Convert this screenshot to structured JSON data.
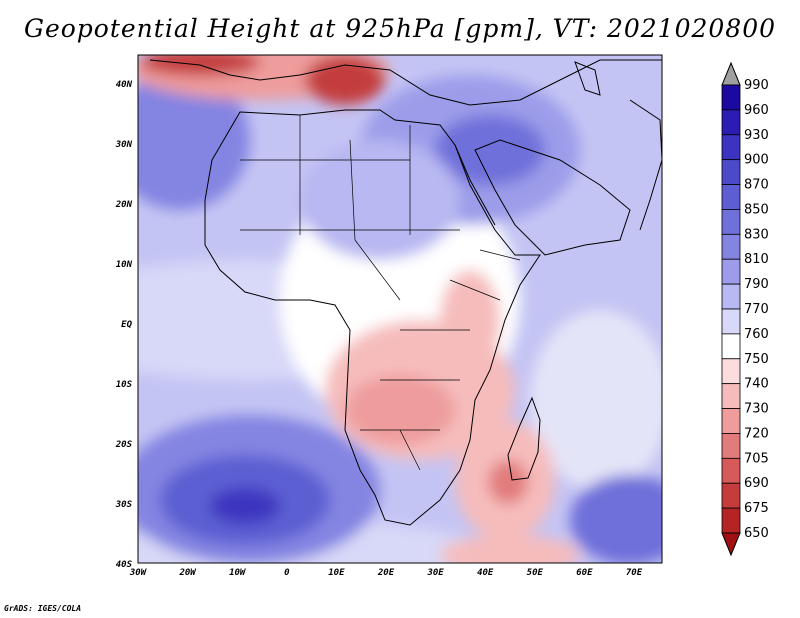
{
  "title": "Geopotential Height at 925hPa [gpm], VT: 2021020800",
  "credit": "GrADS: IGES/COLA",
  "map": {
    "lon_labels": [
      "30W",
      "20W",
      "10W",
      "0",
      "10E",
      "20E",
      "30E",
      "40E",
      "50E",
      "60E",
      "70E"
    ],
    "lat_labels": [
      "40N",
      "30N",
      "20N",
      "10N",
      "EQ",
      "10S",
      "20S",
      "30S",
      "40S"
    ]
  },
  "colorbar": {
    "levels": [
      "990",
      "960",
      "930",
      "900",
      "870",
      "850",
      "830",
      "810",
      "790",
      "770",
      "760",
      "750",
      "740",
      "730",
      "720",
      "705",
      "690",
      "675",
      "650"
    ],
    "colors": [
      "#a0a0a0",
      "#1c0aa0",
      "#2c1cb4",
      "#3c34c0",
      "#4c4ac8",
      "#5c5ed2",
      "#7070da",
      "#8484e2",
      "#9c9cea",
      "#b8b8f2",
      "#d8d8f8",
      "#ffffff",
      "#fcdcdc",
      "#f6bcbc",
      "#ee9c9c",
      "#e27c7c",
      "#d65a5a",
      "#c43c3c",
      "#b42424",
      "#a01010"
    ]
  }
}
